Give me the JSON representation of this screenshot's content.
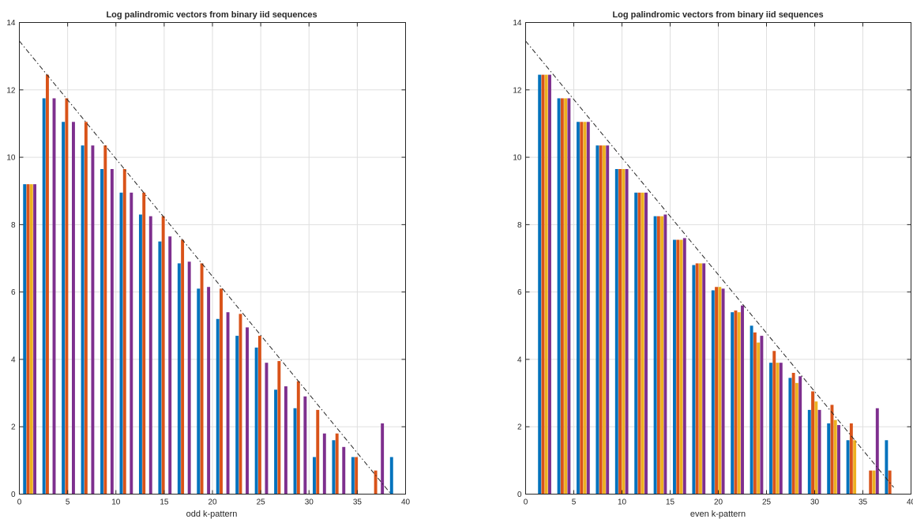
{
  "chart_data": [
    {
      "type": "bar",
      "title": "Log palindromic vectors from binary iid sequences",
      "xlabel": "odd k-pattern",
      "ylabel": "",
      "xlim": [
        0,
        40
      ],
      "ylim": [
        0,
        14
      ],
      "xticks": [
        0,
        5,
        10,
        15,
        20,
        25,
        30,
        35,
        40
      ],
      "yticks": [
        0,
        2,
        4,
        6,
        8,
        10,
        12,
        14
      ],
      "grid": true,
      "reference_line": {
        "style": "dash-dot",
        "color": "#262626",
        "x": [
          0,
          38.5
        ],
        "y": [
          13.45,
          0
        ]
      },
      "bar_width": 0.32,
      "series": [
        {
          "color": "#0072BD",
          "bars": [
            [
              0.55,
              9.2
            ],
            [
              2.55,
              11.75
            ],
            [
              4.55,
              11.05
            ],
            [
              6.55,
              10.35
            ],
            [
              8.55,
              9.65
            ],
            [
              10.55,
              8.95
            ],
            [
              12.55,
              8.3
            ],
            [
              14.55,
              7.5
            ],
            [
              16.55,
              6.85
            ],
            [
              18.55,
              6.1
            ],
            [
              20.55,
              5.2
            ],
            [
              22.55,
              4.7
            ],
            [
              24.55,
              4.35
            ],
            [
              26.55,
              3.1
            ],
            [
              28.55,
              2.55
            ],
            [
              30.55,
              1.1
            ],
            [
              32.55,
              1.6
            ],
            [
              34.55,
              1.1
            ],
            [
              38.55,
              1.1
            ]
          ]
        },
        {
          "color": "#D95319",
          "bars": [
            [
              0.9,
              9.2
            ],
            [
              2.9,
              12.45
            ],
            [
              4.9,
              11.75
            ],
            [
              6.9,
              11.05
            ],
            [
              8.9,
              10.35
            ],
            [
              10.9,
              9.65
            ],
            [
              12.9,
              8.95
            ],
            [
              14.9,
              8.25
            ],
            [
              16.9,
              7.55
            ],
            [
              18.9,
              6.85
            ],
            [
              20.9,
              6.1
            ],
            [
              22.9,
              5.35
            ],
            [
              24.9,
              4.7
            ],
            [
              26.9,
              3.95
            ],
            [
              28.9,
              3.35
            ],
            [
              30.9,
              2.5
            ],
            [
              32.9,
              1.8
            ],
            [
              34.9,
              1.1
            ],
            [
              36.9,
              0.7
            ]
          ]
        },
        {
          "color": "#EDB120",
          "bars": [
            [
              1.25,
              9.2
            ]
          ]
        },
        {
          "color": "#7E2F8E",
          "bars": [
            [
              1.6,
              9.2
            ],
            [
              3.6,
              11.75
            ],
            [
              5.6,
              11.05
            ],
            [
              7.6,
              10.35
            ],
            [
              9.6,
              9.65
            ],
            [
              11.6,
              8.95
            ],
            [
              13.6,
              8.25
            ],
            [
              15.6,
              7.65
            ],
            [
              17.6,
              6.9
            ],
            [
              19.6,
              6.15
            ],
            [
              21.6,
              5.4
            ],
            [
              23.6,
              4.95
            ],
            [
              25.6,
              3.9
            ],
            [
              27.6,
              3.2
            ],
            [
              29.6,
              2.9
            ],
            [
              31.6,
              1.8
            ],
            [
              33.6,
              1.4
            ],
            [
              37.6,
              2.1
            ]
          ]
        }
      ]
    },
    {
      "type": "bar",
      "title": "Log palindromic vectors from binary iid sequences",
      "xlabel": "even k-pattern",
      "ylabel": "",
      "xlim": [
        0,
        40
      ],
      "ylim": [
        0,
        14
      ],
      "xticks": [
        0,
        5,
        10,
        15,
        20,
        25,
        30,
        35,
        40
      ],
      "yticks": [
        0,
        2,
        4,
        6,
        8,
        10,
        12,
        14
      ],
      "grid": true,
      "reference_line": {
        "style": "dash-dot",
        "color": "#262626",
        "x": [
          0,
          38.2
        ],
        "y": [
          13.45,
          0.2
        ]
      },
      "bar_width": 0.32,
      "series": [
        {
          "color": "#0072BD",
          "bars": [
            [
              1.45,
              12.45
            ],
            [
              3.45,
              11.75
            ],
            [
              5.45,
              11.05
            ],
            [
              7.45,
              10.35
            ],
            [
              9.45,
              9.65
            ],
            [
              11.45,
              8.95
            ],
            [
              13.45,
              8.25
            ],
            [
              15.45,
              7.55
            ],
            [
              17.45,
              6.8
            ],
            [
              19.45,
              6.05
            ],
            [
              21.45,
              5.4
            ],
            [
              23.45,
              5.0
            ],
            [
              25.45,
              3.9
            ],
            [
              27.45,
              3.45
            ],
            [
              29.45,
              2.5
            ],
            [
              31.45,
              2.1
            ],
            [
              33.45,
              1.6
            ],
            [
              37.45,
              1.6
            ]
          ]
        },
        {
          "color": "#D95319",
          "bars": [
            [
              1.8,
              12.45
            ],
            [
              3.8,
              11.75
            ],
            [
              5.8,
              11.05
            ],
            [
              7.8,
              10.35
            ],
            [
              9.8,
              9.65
            ],
            [
              11.8,
              8.95
            ],
            [
              13.8,
              8.25
            ],
            [
              15.8,
              7.55
            ],
            [
              17.8,
              6.85
            ],
            [
              19.8,
              6.15
            ],
            [
              21.8,
              5.45
            ],
            [
              23.8,
              4.8
            ],
            [
              25.8,
              4.25
            ],
            [
              27.8,
              3.6
            ],
            [
              29.8,
              3.05
            ],
            [
              31.8,
              2.65
            ],
            [
              33.8,
              2.1
            ],
            [
              35.8,
              0.7
            ],
            [
              37.8,
              0.7
            ]
          ]
        },
        {
          "color": "#EDB120",
          "bars": [
            [
              2.15,
              12.45
            ],
            [
              4.15,
              11.75
            ],
            [
              6.15,
              11.05
            ],
            [
              8.15,
              10.35
            ],
            [
              10.15,
              9.65
            ],
            [
              12.15,
              8.95
            ],
            [
              14.15,
              8.25
            ],
            [
              16.15,
              7.55
            ],
            [
              18.15,
              6.85
            ],
            [
              20.15,
              6.15
            ],
            [
              22.15,
              5.4
            ],
            [
              24.15,
              4.5
            ],
            [
              26.15,
              3.9
            ],
            [
              28.15,
              3.3
            ],
            [
              30.15,
              2.75
            ],
            [
              32.15,
              2.2
            ],
            [
              34.15,
              1.6
            ],
            [
              36.15,
              0.7
            ]
          ]
        },
        {
          "color": "#7E2F8E",
          "bars": [
            [
              2.5,
              12.45
            ],
            [
              4.5,
              11.75
            ],
            [
              6.5,
              11.05
            ],
            [
              8.5,
              10.35
            ],
            [
              10.5,
              9.65
            ],
            [
              12.5,
              8.95
            ],
            [
              14.5,
              8.3
            ],
            [
              16.5,
              7.6
            ],
            [
              18.5,
              6.85
            ],
            [
              20.5,
              6.1
            ],
            [
              22.5,
              5.6
            ],
            [
              24.5,
              4.7
            ],
            [
              26.5,
              3.9
            ],
            [
              28.5,
              3.5
            ],
            [
              30.5,
              2.5
            ],
            [
              32.5,
              2.05
            ],
            [
              36.5,
              2.55
            ]
          ]
        }
      ]
    }
  ]
}
